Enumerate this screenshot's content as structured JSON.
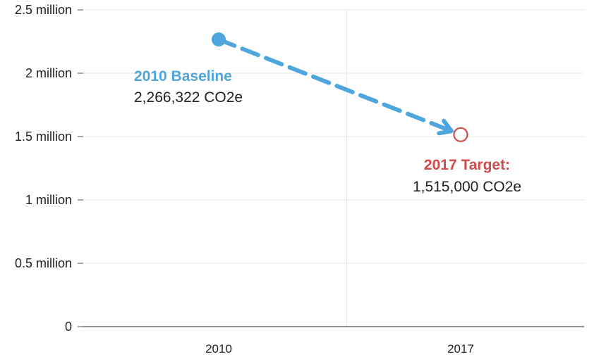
{
  "chart_data": {
    "type": "scatter",
    "y_ticks": [
      {
        "value": 0,
        "label": "0"
      },
      {
        "value": 500000,
        "label": "0.5 million"
      },
      {
        "value": 1000000,
        "label": "1 million"
      },
      {
        "value": 1500000,
        "label": "1.5 million"
      },
      {
        "value": 2000000,
        "label": "2 million"
      },
      {
        "value": 2500000,
        "label": "2.5 million"
      }
    ],
    "categories": [
      "2010",
      "2017"
    ],
    "ylim": [
      0,
      2500000
    ],
    "grid": true,
    "points": [
      {
        "category": "2010",
        "value": 2266322,
        "style": "filled"
      },
      {
        "category": "2017",
        "value": 1515000,
        "style": "open"
      }
    ],
    "arrow": {
      "from": "2010",
      "to": "2017",
      "style": "dashed"
    },
    "annotations": [
      {
        "title": "2010 Baseline",
        "value": "2,266,322 CO2e",
        "color": "#4ea6dc"
      },
      {
        "title": "2017 Target:",
        "value": "1,515,000 CO2e",
        "color": "#d04a4a"
      }
    ]
  },
  "colors": {
    "baseline": "#4ea6dc",
    "target": "#d04a4a",
    "grid": "#e6e6e6",
    "axis": "#555555"
  }
}
